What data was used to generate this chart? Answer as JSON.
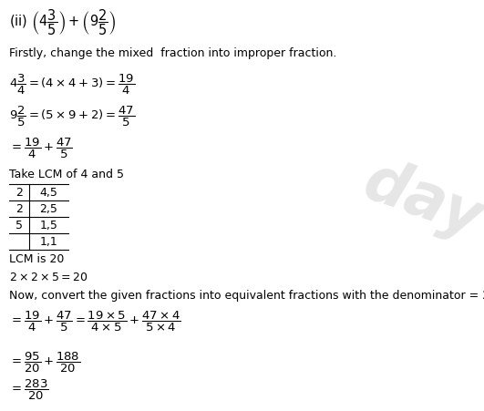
{
  "bg_color": "#ffffff",
  "text_color": "#000000",
  "fig_width": 5.31,
  "fig_height": 4.52,
  "dpi": 100,
  "watermark": "day",
  "table": [
    [
      "2",
      "4,5"
    ],
    [
      "2",
      "2,5"
    ],
    [
      "5",
      "1,5"
    ],
    [
      "",
      "1,1"
    ]
  ]
}
